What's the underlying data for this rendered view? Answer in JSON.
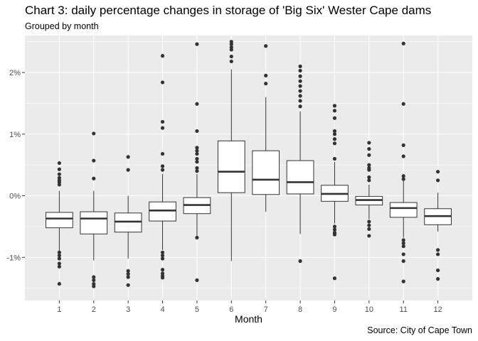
{
  "header": {
    "title": "Chart 3: daily percentage changes in storage of 'Big Six' Wester Cape dams",
    "subtitle": "Grouped by month"
  },
  "footer": {
    "caption": "Source: City of Cape Town"
  },
  "colors": {
    "panel": "#ebebeb",
    "grid_major": "#ffffff",
    "box_fill": "#ffffff",
    "line": "#333333",
    "tick_text": "#4d4d4d"
  },
  "chart_data": {
    "type": "boxplot",
    "xlabel": "Month",
    "ylabel": "",
    "ylim": [
      -1.7,
      2.6
    ],
    "y_ticks": [
      -1,
      0,
      1,
      2
    ],
    "y_tick_labels": [
      "-1%",
      "0%",
      "1%",
      "2%"
    ],
    "grid": true,
    "legend": "none",
    "categories": [
      "1",
      "2",
      "3",
      "4",
      "5",
      "6",
      "7",
      "8",
      "9",
      "10",
      "11",
      "12"
    ],
    "boxes": [
      {
        "month": "1",
        "whisker_low": -0.97,
        "q1": -0.52,
        "median": -0.37,
        "q3": -0.27,
        "whisker_high": 0.08,
        "outliers": [
          0.53,
          0.43,
          0.35,
          0.29,
          0.25,
          0.22,
          0.18,
          -0.92,
          -0.97,
          -1.02,
          -1.1,
          -1.15,
          -1.43
        ]
      },
      {
        "month": "2",
        "whisker_low": -1.05,
        "q1": -0.62,
        "median": -0.37,
        "q3": -0.26,
        "whisker_high": 0.08,
        "outliers": [
          1.01,
          0.57,
          0.28,
          -1.32,
          -1.37,
          -1.43,
          -1.47
        ]
      },
      {
        "month": "3",
        "whisker_low": -1.02,
        "q1": -0.59,
        "median": -0.42,
        "q3": -0.28,
        "whisker_high": 0.0,
        "outliers": [
          0.63,
          0.42,
          -1.22,
          -1.27,
          -1.32,
          -1.45
        ]
      },
      {
        "month": "4",
        "whisker_low": -0.88,
        "q1": -0.41,
        "median": -0.24,
        "q3": -0.1,
        "whisker_high": 0.35,
        "outliers": [
          2.27,
          1.84,
          1.2,
          1.1,
          0.68,
          0.48,
          0.42,
          -0.92,
          -0.97,
          -1.02,
          -1.2,
          -1.26,
          -1.3,
          -1.33
        ]
      },
      {
        "month": "5",
        "whisker_low": -0.65,
        "q1": -0.29,
        "median": -0.15,
        "q3": -0.03,
        "whisker_high": 0.35,
        "outliers": [
          2.46,
          1.49,
          1.05,
          0.78,
          0.73,
          0.68,
          0.6,
          0.55,
          0.45,
          0.4,
          -0.68,
          -1.37
        ]
      },
      {
        "month": "6",
        "whisker_low": -1.06,
        "q1": 0.05,
        "median": 0.39,
        "q3": 0.89,
        "whisker_high": 2.05,
        "outliers": [
          2.5,
          2.46,
          2.41,
          2.37,
          2.26,
          2.18
        ]
      },
      {
        "month": "7",
        "whisker_low": -0.26,
        "q1": 0.02,
        "median": 0.26,
        "q3": 0.73,
        "whisker_high": 1.6,
        "outliers": [
          2.43,
          1.95,
          1.82
        ]
      },
      {
        "month": "8",
        "whisker_low": -0.62,
        "q1": 0.03,
        "median": 0.22,
        "q3": 0.57,
        "whisker_high": 1.37,
        "outliers": [
          2.1,
          2.03,
          1.94,
          1.86,
          1.78,
          1.7,
          1.62,
          1.54,
          1.45,
          -1.06
        ]
      },
      {
        "month": "9",
        "whisker_low": -0.45,
        "q1": -0.09,
        "median": 0.03,
        "q3": 0.17,
        "whisker_high": 0.55,
        "outliers": [
          1.46,
          1.38,
          1.26,
          1.05,
          1.0,
          0.92,
          0.85,
          0.6,
          -0.5,
          -0.55,
          -0.6,
          -0.63,
          -1.34
        ]
      },
      {
        "month": "10",
        "whisker_low": -0.38,
        "q1": -0.15,
        "median": -0.07,
        "q3": -0.01,
        "whisker_high": 0.18,
        "outliers": [
          0.86,
          0.76,
          0.66,
          0.5,
          0.45,
          0.42,
          0.3,
          0.25,
          -0.42,
          -0.48,
          -0.54,
          -0.65
        ]
      },
      {
        "month": "11",
        "whisker_low": -0.68,
        "q1": -0.35,
        "median": -0.2,
        "q3": -0.11,
        "whisker_high": 0.24,
        "outliers": [
          2.47,
          1.49,
          0.82,
          0.64,
          0.32,
          0.27,
          -0.72,
          -0.77,
          -0.82,
          -0.95,
          -1.06,
          -1.39
        ]
      },
      {
        "month": "12",
        "whisker_low": -0.58,
        "q1": -0.47,
        "median": -0.33,
        "q3": -0.21,
        "whisker_high": 0.05,
        "outliers": [
          0.39,
          0.25,
          -0.88,
          -0.95,
          -1.21,
          -1.35
        ]
      }
    ]
  }
}
